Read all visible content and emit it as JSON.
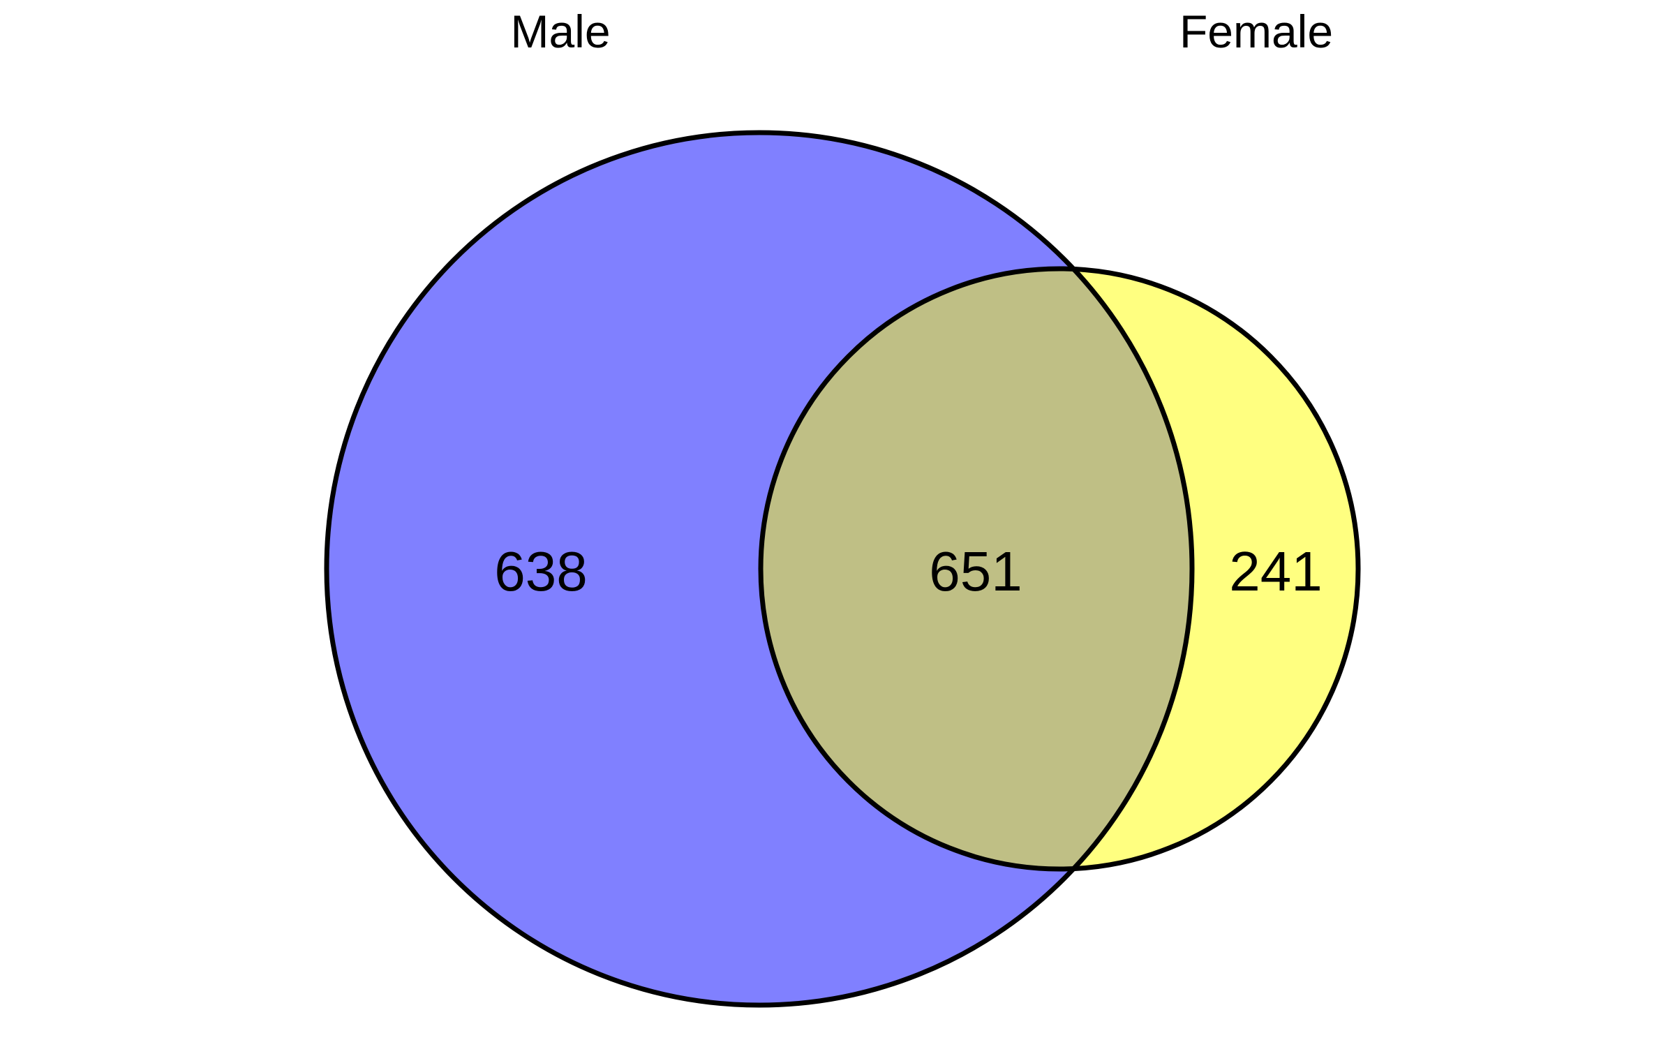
{
  "diagram": {
    "type": "venn",
    "sets": [
      {
        "name": "Male",
        "only_count": "638",
        "fill": "#8080ff"
      },
      {
        "name": "Female",
        "only_count": "241",
        "fill": "#ffff80"
      }
    ],
    "intersection": {
      "count": "651",
      "fill": "#bfbf85"
    },
    "outline_color": "#000000"
  }
}
